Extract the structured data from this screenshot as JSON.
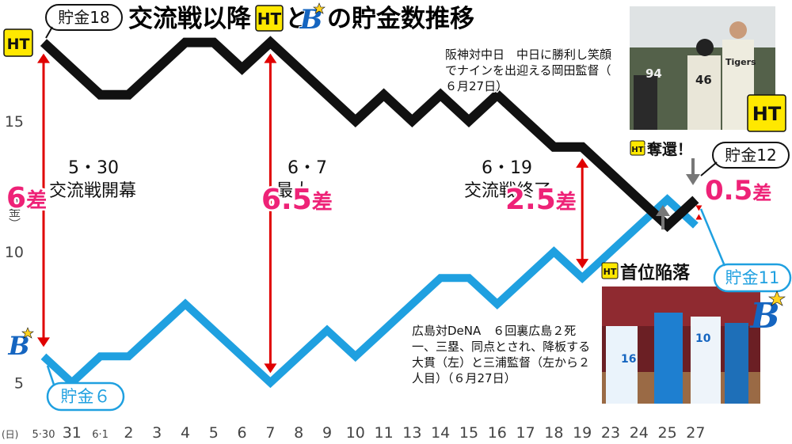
{
  "title": {
    "part1": "交流戦以降",
    "mid": "と",
    "part2": "の貯金数推移",
    "logo_tigers": "HT",
    "logo_baystars": "B"
  },
  "colors": {
    "tigers_line": "#111111",
    "baystars_line": "#1fa0e0",
    "gap_arrow": "#e00000",
    "gap_text": "#ee2277",
    "title_text": "#0e9a4a",
    "logo_bg": "#ffe800",
    "baystars_logo": "#1565c0",
    "axis_gray": "#888888",
    "marker_gray": "#777777"
  },
  "chart_data": {
    "type": "line",
    "title": "交流戦以降の貯金数推移",
    "ylabel": "（貯金）",
    "xlabel_prefix": "(日)",
    "categories": [
      "5·30",
      "31",
      "6·1",
      "2",
      "3",
      "4",
      "5",
      "6",
      "7",
      "8",
      "9",
      "10",
      "11",
      "13",
      "14",
      "15",
      "16",
      "17",
      "18",
      "19",
      "23",
      "24",
      "25",
      "27"
    ],
    "ylim": [
      3.5,
      19.5
    ],
    "yticks": [
      5,
      10,
      15
    ],
    "grid": false,
    "series": [
      {
        "name": "阪神",
        "values": [
          18,
          17,
          16,
          16,
          17,
          18,
          18,
          17,
          18,
          17,
          16,
          15,
          16,
          15,
          16,
          15,
          16,
          15,
          14,
          14,
          13,
          12,
          11,
          12
        ]
      },
      {
        "name": "DeNA",
        "values": [
          6,
          5,
          6,
          6,
          7,
          8,
          7,
          6,
          5,
          6,
          7,
          6,
          7,
          8,
          9,
          9,
          8,
          9,
          10,
          9,
          10,
          11,
          12,
          11
        ]
      }
    ],
    "gaps": [
      {
        "index": 0,
        "date": "5・30",
        "event": "交流戦開幕",
        "value": "6",
        "unit": "差"
      },
      {
        "index": 8,
        "date": "6・7",
        "event": "最大",
        "value": "6.5",
        "unit": "差"
      },
      {
        "index": 19,
        "date": "6・19",
        "event": "交流戦終了",
        "value": "2.5",
        "unit": "差"
      },
      {
        "index": 23,
        "value": "0.5",
        "unit": "差"
      }
    ],
    "annotations": {
      "tigers_start": "貯金18",
      "baystars_start": "貯金６",
      "tigers_end": "貯金12",
      "baystars_end": "貯金11",
      "recapture": "奪還！",
      "drop": "首位陥落"
    }
  },
  "photos": {
    "top_caption": "阪神対中日　中日に勝利し笑顔でナインを出迎える岡田監督（６月27日）",
    "bottom_caption": "広島対DeNA　６回裏広島２死一、三塁、同点とされ、降板する大貫（左）と三浦監督（左から２人目）（６月27日）"
  }
}
